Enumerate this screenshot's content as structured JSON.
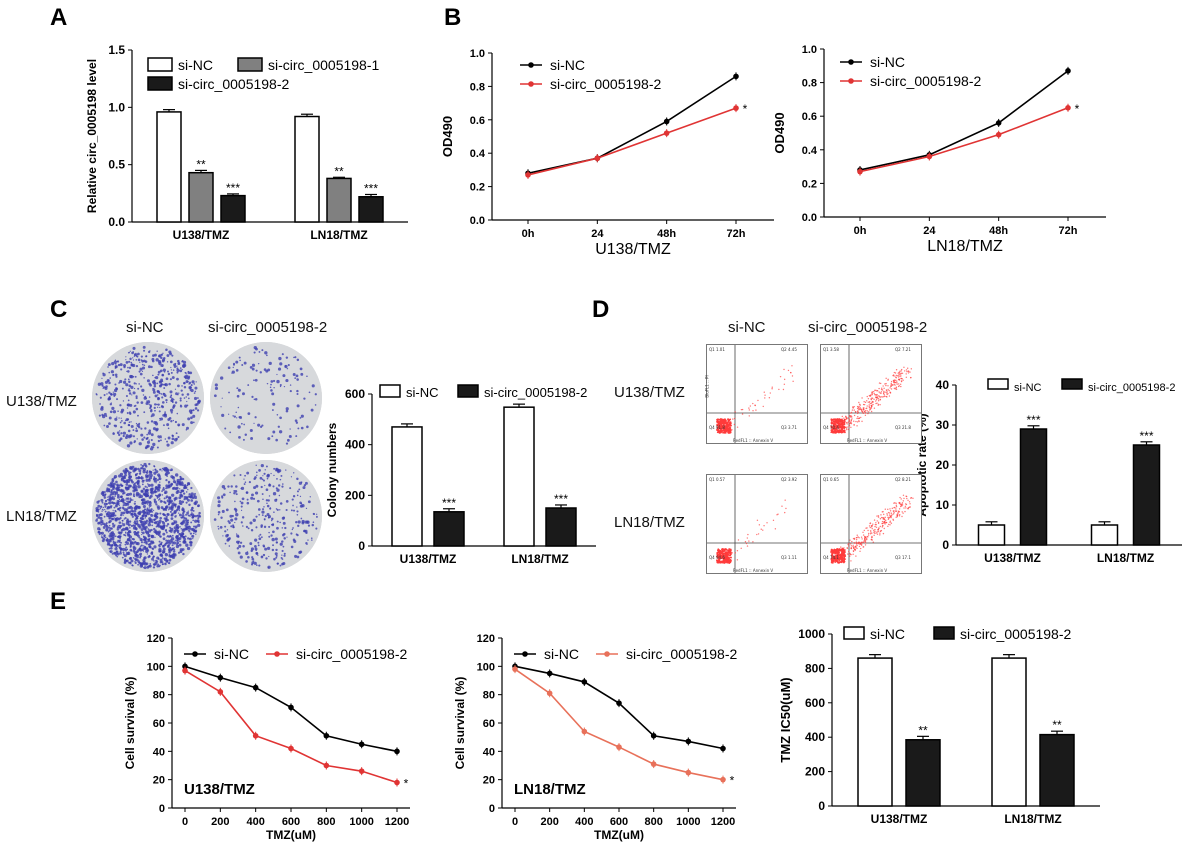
{
  "panels": {
    "a": "A",
    "b": "B",
    "c": "C",
    "d": "D",
    "e": "E"
  },
  "colors": {
    "black": "#000000",
    "red": "#e03434",
    "salmon": "#e8715a",
    "gray": "#808080",
    "dark": "#1a1a1a",
    "colony": "#3d3fb0",
    "dot": "#ff3b3b",
    "plate": "#d7d9dc"
  },
  "chart_data": [
    {
      "id": "A",
      "type": "bar",
      "ylabel": "Relative circ_0005198 level",
      "ylim": [
        0,
        1.5
      ],
      "yticks": [
        "0.0",
        "0.5",
        "1.0",
        "1.5"
      ],
      "categories": [
        "U138/TMZ",
        "LN18/TMZ"
      ],
      "series": [
        {
          "name": "si-NC",
          "values": [
            0.96,
            0.92
          ],
          "err": [
            0.02,
            0.02
          ]
        },
        {
          "name": "si-circ_0005198-1",
          "values": [
            0.43,
            0.38
          ],
          "err": [
            0.02,
            0.01
          ]
        },
        {
          "name": "si-circ_0005198-2",
          "values": [
            0.23,
            0.22
          ],
          "err": [
            0.015,
            0.02
          ]
        }
      ],
      "annotations": [
        [
          "",
          "**",
          "***"
        ],
        [
          "",
          "**",
          "***"
        ]
      ],
      "legend": "top"
    },
    {
      "id": "B1",
      "type": "line",
      "xlabel": "U138/TMZ",
      "ylabel": "OD490",
      "categories": [
        "0h",
        "24",
        "48h",
        "72h"
      ],
      "ylim": [
        0,
        1.0
      ],
      "yticks": [
        "0.0",
        "0.2",
        "0.4",
        "0.6",
        "0.8",
        "1.0"
      ],
      "series": [
        {
          "name": "si-NC",
          "values": [
            0.28,
            0.37,
            0.59,
            0.86
          ]
        },
        {
          "name": "si-circ_0005198-2",
          "values": [
            0.27,
            0.37,
            0.52,
            0.67
          ]
        }
      ],
      "end_mark": "*"
    },
    {
      "id": "B2",
      "type": "line",
      "xlabel": "LN18/TMZ",
      "ylabel": "OD490",
      "categories": [
        "0h",
        "24",
        "48h",
        "72h"
      ],
      "ylim": [
        0,
        1.0
      ],
      "yticks": [
        "0.0",
        "0.2",
        "0.4",
        "0.6",
        "0.8",
        "1.0"
      ],
      "series": [
        {
          "name": "si-NC",
          "values": [
            0.28,
            0.37,
            0.56,
            0.87
          ]
        },
        {
          "name": "si-circ_0005198-2",
          "values": [
            0.27,
            0.36,
            0.49,
            0.65
          ]
        }
      ],
      "end_mark": "*"
    },
    {
      "id": "C",
      "type": "bar",
      "ylabel": "Colony numbers",
      "ylim": [
        0,
        600
      ],
      "yticks": [
        "0",
        "200",
        "400",
        "600"
      ],
      "categories": [
        "U138/TMZ",
        "LN18/TMZ"
      ],
      "series": [
        {
          "name": "si-NC",
          "values": [
            470,
            548
          ]
        },
        {
          "name": "si-circ_0005198-2",
          "values": [
            135,
            150
          ]
        }
      ],
      "annotations": [
        [
          "",
          "***"
        ],
        [
          "",
          "***"
        ]
      ]
    },
    {
      "id": "D",
      "type": "bar",
      "ylabel": "Apoptotic rate (%)",
      "ylim": [
        0,
        40
      ],
      "yticks": [
        "0",
        "10",
        "20",
        "30",
        "40"
      ],
      "categories": [
        "U138/TMZ",
        "LN18/TMZ"
      ],
      "series": [
        {
          "name": "si-NC",
          "values": [
            5,
            5
          ]
        },
        {
          "name": "si-circ_0005198-2",
          "values": [
            29,
            25
          ]
        }
      ],
      "annotations": [
        [
          "",
          "***"
        ],
        [
          "",
          "***"
        ]
      ]
    },
    {
      "id": "E1",
      "type": "line",
      "xlabel": "TMZ(uM)",
      "ylabel": "Cell survival (%)",
      "inset": "U138/TMZ",
      "x": [
        0,
        200,
        400,
        600,
        800,
        1000,
        1200
      ],
      "ylim": [
        0,
        120
      ],
      "yticks": [
        "0",
        "20",
        "40",
        "60",
        "80",
        "100",
        "120"
      ],
      "xticks": [
        "0",
        "200",
        "400",
        "600",
        "800",
        "1000",
        "1200"
      ],
      "series": [
        {
          "name": "si-NC",
          "values": [
            100,
            92,
            85,
            71,
            51,
            45,
            40
          ]
        },
        {
          "name": "si-circ_0005198-2",
          "values": [
            97,
            82,
            51,
            42,
            30,
            26,
            18
          ]
        }
      ],
      "end_mark": "*"
    },
    {
      "id": "E2",
      "type": "line",
      "xlabel": "TMZ(uM)",
      "ylabel": "Cell survival (%)",
      "inset": "LN18/TMZ",
      "x": [
        0,
        200,
        400,
        600,
        800,
        1000,
        1200
      ],
      "ylim": [
        0,
        120
      ],
      "yticks": [
        "0",
        "20",
        "40",
        "60",
        "80",
        "100",
        "120"
      ],
      "xticks": [
        "0",
        "200",
        "400",
        "600",
        "800",
        "1000",
        "1200"
      ],
      "series": [
        {
          "name": "si-NC",
          "values": [
            100,
            95,
            89,
            74,
            51,
            47,
            42
          ]
        },
        {
          "name": "si-circ_0005198-2",
          "values": [
            98,
            81,
            54,
            43,
            31,
            25,
            20
          ]
        }
      ],
      "end_mark": "*"
    },
    {
      "id": "E3",
      "type": "bar",
      "ylabel": "TMZ IC50(uM)",
      "ylim": [
        0,
        1000
      ],
      "yticks": [
        "0",
        "200",
        "400",
        "600",
        "800",
        "1000"
      ],
      "categories": [
        "U138/TMZ",
        "LN18/TMZ"
      ],
      "series": [
        {
          "name": "si-NC",
          "values": [
            860,
            860
          ]
        },
        {
          "name": "si-circ_0005198-2",
          "values": [
            385,
            415
          ]
        }
      ],
      "annotations": [
        [
          "",
          "**"
        ],
        [
          "",
          "**"
        ]
      ]
    }
  ],
  "colony": {
    "col_labels": [
      "si-NC",
      "si-circ_0005198-2"
    ],
    "row_labels": [
      "U138/TMZ",
      "LN18/TMZ"
    ],
    "densities": [
      [
        520,
        140
      ],
      [
        1400,
        330
      ]
    ]
  },
  "flow": {
    "col_labels": [
      "si-NC",
      "si-circ_0005198-2"
    ],
    "row_labels": [
      "U138/TMZ",
      "LN18/TMZ"
    ],
    "xaxis": "RedFL1 :: Annexin V",
    "yaxis": "BluFL1 :: PI",
    "quadrants": [
      [
        [
          "Q1 1.01",
          "Q2 4.45",
          "Q3 3.71",
          "Q4 91.8"
        ],
        [
          "Q1 3.58",
          "Q2 7.21",
          "Q3 21.8",
          "Q4 70.4"
        ]
      ],
      [
        [
          "Q1 0.57",
          "Q2 3.92",
          "Q3 1.11",
          "Q4 94.6"
        ],
        [
          "Q1 0.65",
          "Q2 8.21",
          "Q3 17.1",
          "Q4 74.1"
        ]
      ]
    ]
  }
}
